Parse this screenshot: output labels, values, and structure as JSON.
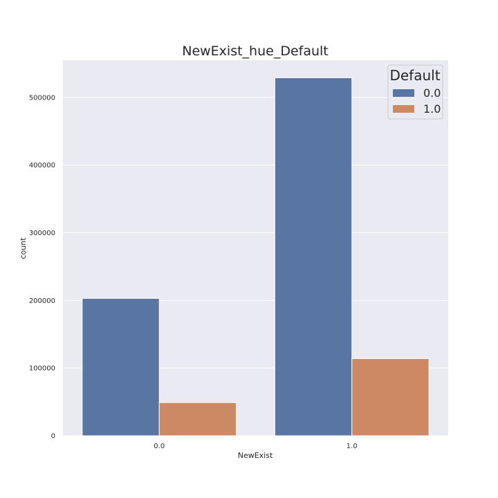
{
  "chart_data": {
    "type": "bar",
    "title": "NewExist_hue_Default",
    "xlabel": "NewExist",
    "ylabel": "count",
    "categories": [
      "0.0",
      "1.0"
    ],
    "series": [
      {
        "name": "0.0",
        "values": [
          203000,
          529000
        ]
      },
      {
        "name": "1.0",
        "values": [
          49000,
          114000
        ]
      }
    ],
    "ylim": [
      0,
      555000
    ],
    "yticks": [
      0,
      100000,
      200000,
      300000,
      400000,
      500000
    ],
    "ytick_labels": [
      "0",
      "100000",
      "200000",
      "300000",
      "400000",
      "500000"
    ],
    "legend": {
      "title": "Default",
      "placement": "top-right"
    },
    "grid": true
  },
  "colors": {
    "background": "#eaeaf2",
    "grid": "#ffffff",
    "series": [
      "#5875a4",
      "#cc8963"
    ]
  }
}
